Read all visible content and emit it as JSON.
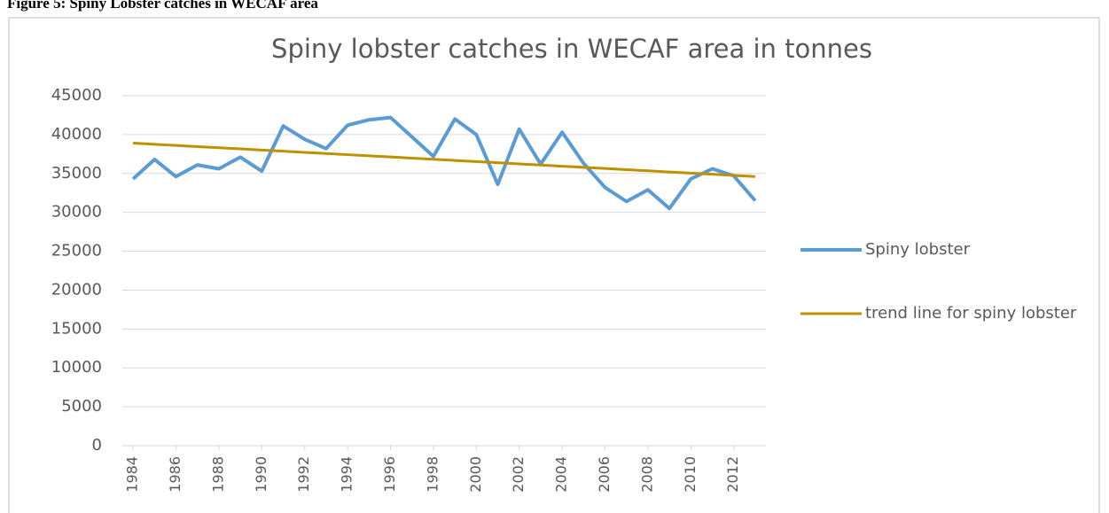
{
  "caption": "Figure 5: Spiny Lobster catches in WECAF area",
  "chart_data": {
    "type": "line",
    "title": "Spiny lobster catches in WECAF area in tonnes",
    "x": [
      1984,
      1985,
      1986,
      1987,
      1988,
      1989,
      1990,
      1991,
      1992,
      1993,
      1994,
      1995,
      1996,
      1997,
      1998,
      1999,
      2000,
      2001,
      2002,
      2003,
      2004,
      2005,
      2006,
      2007,
      2008,
      2009,
      2010,
      2011,
      2012,
      2013
    ],
    "series": [
      {
        "name": "Spiny lobster",
        "color": "#5b9bd5",
        "values": [
          34300,
          36800,
          34600,
          36100,
          35600,
          37100,
          35300,
          41100,
          39400,
          38200,
          41200,
          41900,
          42200,
          39700,
          37200,
          42000,
          40000,
          33600,
          40700,
          36200,
          40300,
          36300,
          33200,
          31400,
          32900,
          30500,
          34300,
          35600,
          34700,
          31500
        ]
      },
      {
        "name": "trend line for spiny lobster",
        "color": "#bf9000",
        "values": [
          38900,
          38752,
          38603,
          38455,
          38307,
          38159,
          38010,
          37862,
          37714,
          37566,
          37417,
          37269,
          37121,
          36972,
          36824,
          36676,
          36528,
          36379,
          36231,
          36083,
          35934,
          35786,
          35638,
          35490,
          35341,
          35193,
          35045,
          34897,
          34748,
          34600
        ]
      }
    ],
    "xlim": [
      1983.5,
      2013.5
    ],
    "xticks": [
      1984,
      1986,
      1988,
      1990,
      1992,
      1994,
      1996,
      1998,
      2000,
      2002,
      2004,
      2006,
      2008,
      2010,
      2012
    ],
    "ylim": [
      0,
      45000
    ],
    "yticks": [
      0,
      5000,
      10000,
      15000,
      20000,
      25000,
      30000,
      35000,
      40000,
      45000
    ],
    "grid": true,
    "legend": "right"
  }
}
